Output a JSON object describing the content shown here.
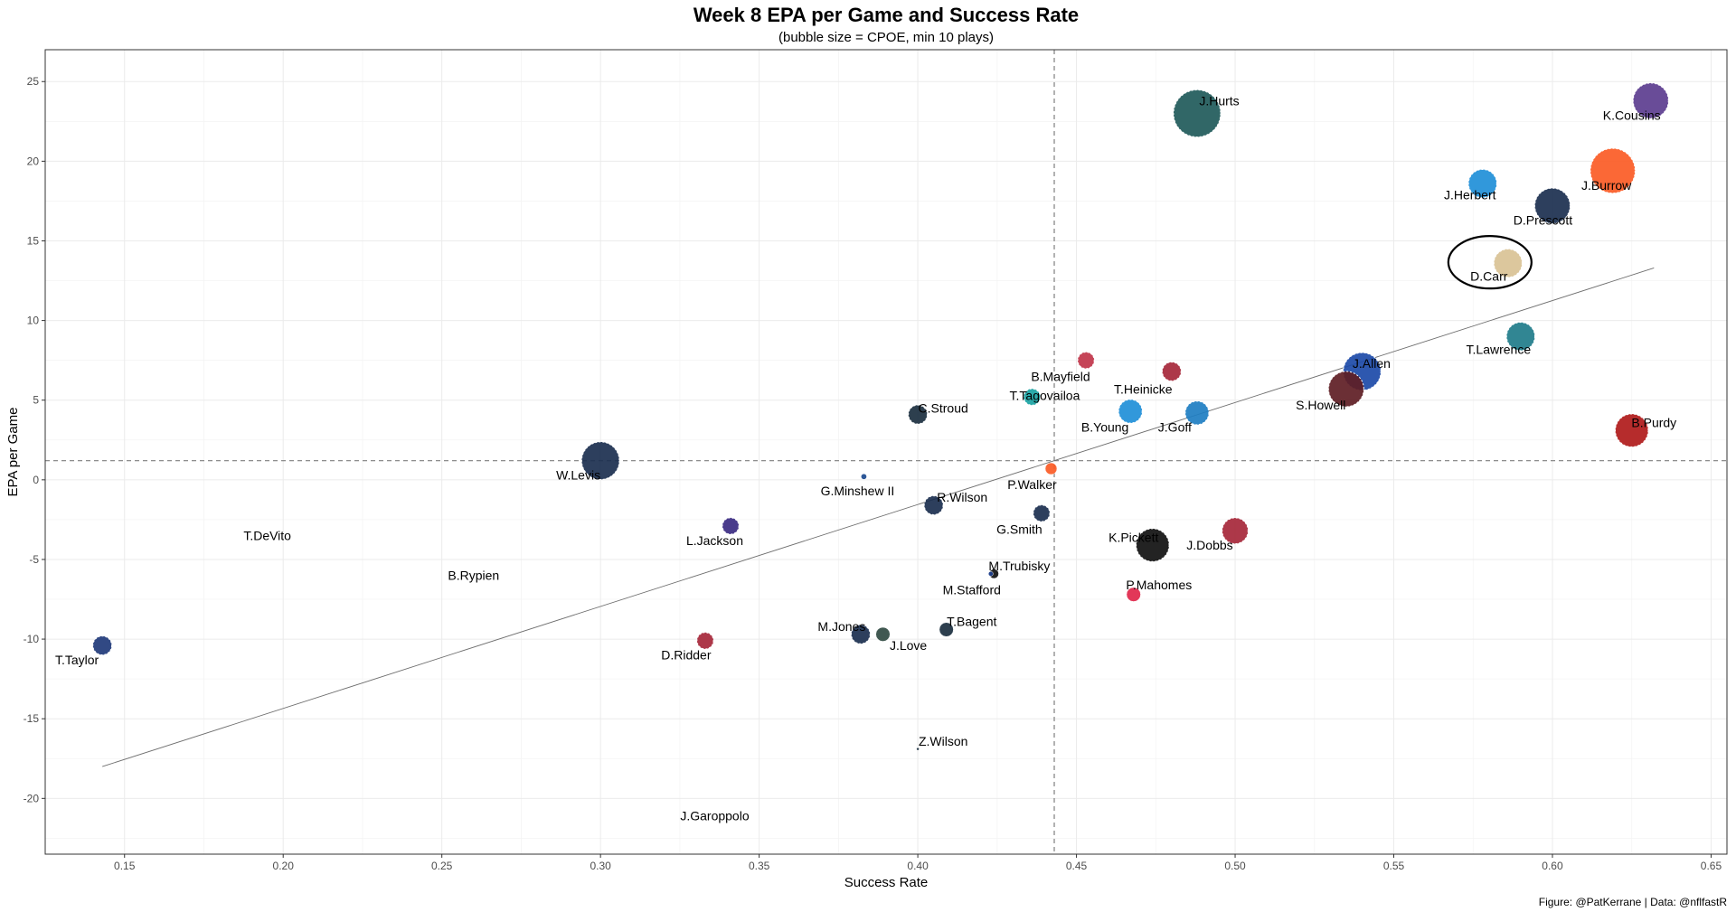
{
  "chart_data": {
    "type": "scatter",
    "title": "Week 8 EPA per Game and Success Rate",
    "subtitle": "(bubble size = CPOE, min 10 plays)",
    "xlabel": "Success Rate",
    "ylabel": "EPA per Game",
    "caption": "Figure: @PatKerrane | Data: @nflfastR",
    "xlim": [
      0.125,
      0.655
    ],
    "ylim": [
      -23.5,
      27.0
    ],
    "x_ticks": [
      0.15,
      0.2,
      0.25,
      0.3,
      0.35,
      0.4,
      0.45,
      0.5,
      0.55,
      0.6,
      0.65
    ],
    "x_tick_labels": [
      "0.15",
      "0.20",
      "0.25",
      "0.30",
      "0.35",
      "0.40",
      "0.45",
      "0.50",
      "0.55",
      "0.60",
      "0.65"
    ],
    "y_ticks": [
      -20,
      -15,
      -10,
      -5,
      0,
      5,
      10,
      15,
      20,
      25
    ],
    "y_tick_labels": [
      "-20",
      "-15",
      "-10",
      "-5",
      "0",
      "5",
      "10",
      "15",
      "20",
      "25"
    ],
    "grid": true,
    "mean_x": 0.443,
    "mean_y": 1.2,
    "trend_line": {
      "x": [
        0.143,
        0.632
      ],
      "y": [
        -18.0,
        13.3
      ]
    },
    "highlight": "D.Carr",
    "points": [
      {
        "name": "J.Hurts",
        "x": 0.488,
        "y": 23.0,
        "cpoe": 10.0,
        "color": "#1f5a5a",
        "lx": 0.495,
        "ly": 23.8
      },
      {
        "name": "K.Cousins",
        "x": 0.631,
        "y": 23.8,
        "cpoe": 7.5,
        "color": "#5c3d8f",
        "lx": 0.625,
        "ly": 22.9
      },
      {
        "name": "J.Burrow",
        "x": 0.619,
        "y": 19.4,
        "cpoe": 9.5,
        "color": "#fb5b25",
        "lx": 0.617,
        "ly": 18.5
      },
      {
        "name": "J.Herbert",
        "x": 0.578,
        "y": 18.6,
        "cpoe": 6.0,
        "color": "#1f8fd8",
        "lx": 0.574,
        "ly": 17.9
      },
      {
        "name": "D.Prescott",
        "x": 0.6,
        "y": 17.2,
        "cpoe": 7.5,
        "color": "#1b2f4f",
        "lx": 0.597,
        "ly": 16.3
      },
      {
        "name": "D.Carr",
        "x": 0.586,
        "y": 13.6,
        "cpoe": 6.0,
        "color": "#d9c295",
        "lx": 0.58,
        "ly": 12.8
      },
      {
        "name": "T.Lawrence",
        "x": 0.59,
        "y": 9.0,
        "cpoe": 6.0,
        "color": "#1f7c8a",
        "lx": 0.583,
        "ly": 8.2
      },
      {
        "name": "J.Allen",
        "x": 0.54,
        "y": 6.8,
        "cpoe": 8.0,
        "color": "#1c4aa8",
        "lx": 0.543,
        "ly": 7.3
      },
      {
        "name": "S.Howell",
        "x": 0.535,
        "y": 5.7,
        "cpoe": 7.5,
        "color": "#5e1d24",
        "lx": 0.527,
        "ly": 4.7
      },
      {
        "name": "B.Purdy",
        "x": 0.625,
        "y": 3.1,
        "cpoe": 7.0,
        "color": "#b01a1a",
        "lx": 0.632,
        "ly": 3.6
      },
      {
        "name": "B.Mayfield",
        "x": 0.453,
        "y": 7.5,
        "cpoe": 3.5,
        "color": "#c0354a",
        "lx": 0.445,
        "ly": 6.5
      },
      {
        "name": "T.Heinicke",
        "x": 0.48,
        "y": 6.8,
        "cpoe": 4.0,
        "color": "#a6273a",
        "lx": 0.471,
        "ly": 5.7
      },
      {
        "name": "T.Tagovailoa",
        "x": 0.436,
        "y": 5.2,
        "cpoe": 3.5,
        "color": "#1aa3a3",
        "lx": 0.44,
        "ly": 5.3
      },
      {
        "name": "C.Stroud",
        "x": 0.4,
        "y": 4.1,
        "cpoe": 4.0,
        "color": "#1b2f3f",
        "lx": 0.408,
        "ly": 4.5
      },
      {
        "name": "B.Young",
        "x": 0.467,
        "y": 4.3,
        "cpoe": 5.0,
        "color": "#1f8fd8",
        "lx": 0.459,
        "ly": 3.3
      },
      {
        "name": "J.Goff",
        "x": 0.488,
        "y": 4.2,
        "cpoe": 5.0,
        "color": "#1e7ec2",
        "lx": 0.481,
        "ly": 3.3
      },
      {
        "name": "W.Levis",
        "x": 0.3,
        "y": 1.2,
        "cpoe": 8.0,
        "color": "#1b2f4f",
        "lx": 0.293,
        "ly": 0.3
      },
      {
        "name": "P.Walker",
        "x": 0.442,
        "y": 0.7,
        "cpoe": 2.5,
        "color": "#fb5b25",
        "lx": 0.436,
        "ly": -0.3
      },
      {
        "name": "G.Minshew II",
        "x": 0.383,
        "y": 0.2,
        "cpoe": 1.2,
        "color": "#1c4a8f",
        "lx": 0.381,
        "ly": -0.7
      },
      {
        "name": "R.Wilson",
        "x": 0.405,
        "y": -1.6,
        "cpoe": 4.0,
        "color": "#1b2f4f",
        "lx": 0.414,
        "ly": -1.1
      },
      {
        "name": "G.Smith",
        "x": 0.439,
        "y": -2.1,
        "cpoe": 3.5,
        "color": "#1b2f4f",
        "lx": 0.432,
        "ly": -3.1
      },
      {
        "name": "L.Jackson",
        "x": 0.341,
        "y": -2.9,
        "cpoe": 3.5,
        "color": "#3b2b82",
        "lx": 0.336,
        "ly": -3.8
      },
      {
        "name": "K.Pickett",
        "x": 0.474,
        "y": -4.1,
        "cpoe": 7.0,
        "color": "#101010",
        "lx": 0.468,
        "ly": -3.6
      },
      {
        "name": "J.Dobbs",
        "x": 0.5,
        "y": -3.2,
        "cpoe": 5.5,
        "color": "#a6273a",
        "lx": 0.492,
        "ly": -4.1
      },
      {
        "name": "M.Trubisky",
        "x": 0.424,
        "y": -5.9,
        "cpoe": 2.0,
        "color": "#101010",
        "lx": 0.432,
        "ly": -5.4
      },
      {
        "name": "M.Stafford",
        "x": 0.423,
        "y": -5.9,
        "cpoe": 1.0,
        "color": "#1c3f8f",
        "lx": 0.417,
        "ly": -6.9
      },
      {
        "name": "P.Mahomes",
        "x": 0.468,
        "y": -7.2,
        "cpoe": 3.0,
        "color": "#e0264a",
        "lx": 0.476,
        "ly": -6.6
      },
      {
        "name": "T.Bagent",
        "x": 0.409,
        "y": -9.4,
        "cpoe": 3.0,
        "color": "#1b2f3f",
        "lx": 0.417,
        "ly": -8.9
      },
      {
        "name": "M.Jones",
        "x": 0.382,
        "y": -9.7,
        "cpoe": 4.0,
        "color": "#1b2f4f",
        "lx": 0.376,
        "ly": -9.2
      },
      {
        "name": "J.Love",
        "x": 0.389,
        "y": -9.7,
        "cpoe": 3.0,
        "color": "#304a42",
        "lx": 0.397,
        "ly": -10.4
      },
      {
        "name": "D.Ridder",
        "x": 0.333,
        "y": -10.1,
        "cpoe": 3.5,
        "color": "#a6273a",
        "lx": 0.327,
        "ly": -11.0
      },
      {
        "name": "T.Taylor",
        "x": 0.143,
        "y": -10.4,
        "cpoe": 4.0,
        "color": "#203a7a",
        "lx": 0.135,
        "ly": -11.3
      },
      {
        "name": "T.DeVito",
        "x": 0.186,
        "y": -3.5,
        "cpoe": 0,
        "color": "#1b2f4f",
        "lx": 0.195,
        "ly": -3.5
      },
      {
        "name": "B.Rypien",
        "x": 0.252,
        "y": -6.0,
        "cpoe": 0,
        "color": "#1b2f4f",
        "lx": 0.26,
        "ly": -6.0
      },
      {
        "name": "Z.Wilson",
        "x": 0.4,
        "y": -16.9,
        "cpoe": 0.4,
        "color": "#1b2f3f",
        "lx": 0.408,
        "ly": -16.4
      },
      {
        "name": "J.Garoppolo",
        "x": 0.324,
        "y": -21.1,
        "cpoe": 0,
        "color": "#1b2f4f",
        "lx": 0.336,
        "ly": -21.1
      }
    ]
  }
}
